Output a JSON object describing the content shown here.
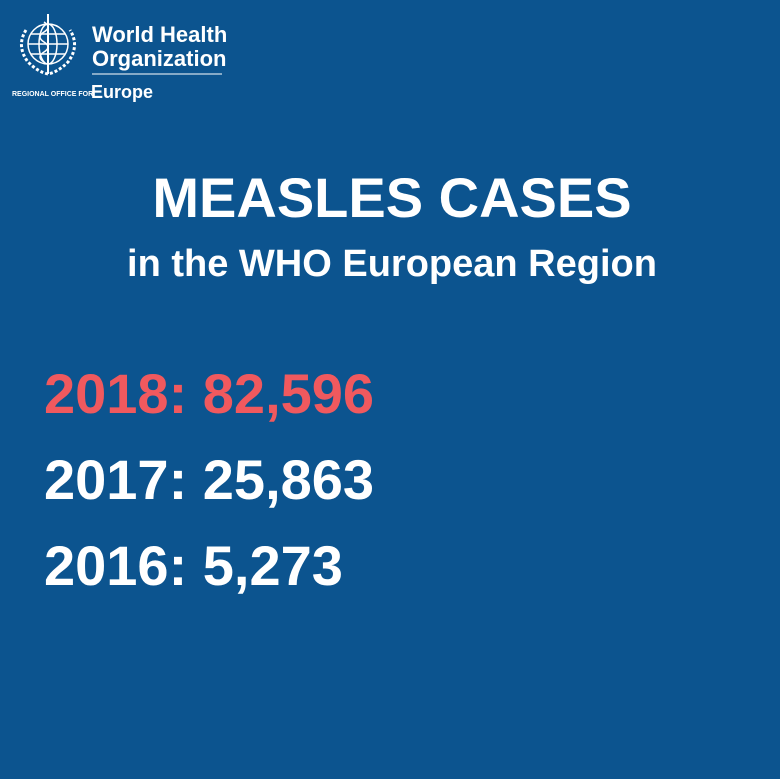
{
  "logo": {
    "line1": "World Health",
    "line2": "Organization",
    "office": "REGIONAL OFFICE FOR",
    "region": "Europe"
  },
  "header": {
    "title": "MEASLES CASES",
    "subtitle": "in the WHO European Region"
  },
  "stats": [
    {
      "text": "2018: 82,596",
      "color": "#f0595e"
    },
    {
      "text": "2017: 25,863",
      "color": "#ffffff"
    },
    {
      "text": "2016: 5,273",
      "color": "#ffffff"
    }
  ]
}
